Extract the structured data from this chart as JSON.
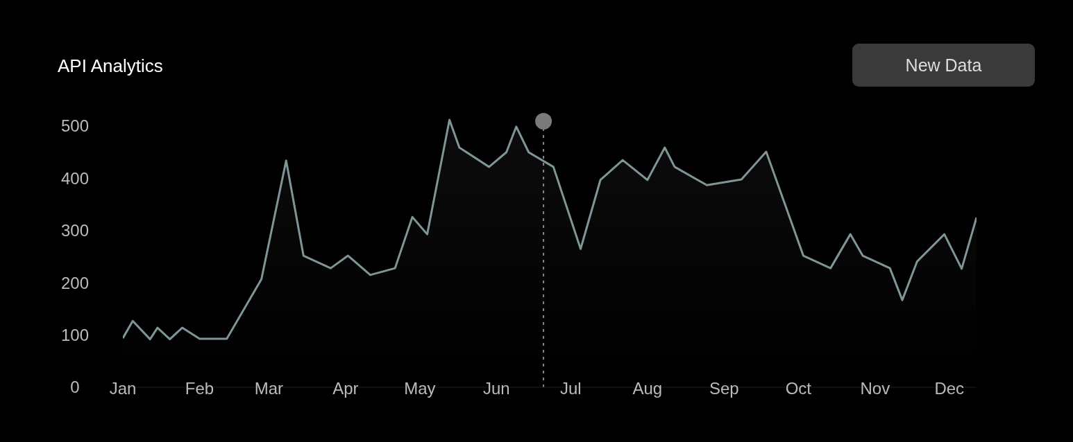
{
  "chart_data": {
    "type": "area",
    "title": "API Analytics",
    "annotations": [
      "New Data"
    ],
    "x": [
      "--01-01",
      "--01-05",
      "--01-12",
      "--01-15",
      "--01-20",
      "--01-25",
      "--02-01",
      "--02-12",
      "--02-26",
      "--03-08",
      "--03-15",
      "--03-26",
      "--04-02",
      "--04-11",
      "--04-21",
      "--04-28",
      "--05-04",
      "--05-13",
      "--05-17",
      "--05-29",
      "--06-05",
      "--06-09",
      "--06-14",
      "--06-24",
      "--07-05",
      "--07-13",
      "--07-22",
      "--08-01",
      "--08-08",
      "--08-12",
      "--08-25",
      "--09-08",
      "--09-18",
      "--10-03",
      "--10-14",
      "--10-22",
      "--10-27",
      "--11-07",
      "--11-12",
      "--11-18",
      "--11-29",
      "--12-06",
      "--12-12"
    ],
    "series": [
      {
        "color": "#7f9597",
        "values": [
          94,
          127,
          92,
          114,
          92,
          114,
          93,
          93,
          207,
          434,
          252,
          228,
          252,
          215,
          228,
          326,
          293,
          512,
          459,
          422,
          450,
          499,
          450,
          422,
          265,
          397,
          435,
          397,
          459,
          422,
          387,
          398,
          451,
          252,
          228,
          293,
          252,
          228,
          167,
          241,
          293,
          227,
          325
        ]
      }
    ],
    "xticks": [
      {
        "value": "--01-01",
        "label": "Jan"
      },
      {
        "value": "--02-01",
        "label": "Feb"
      },
      {
        "value": "--03-01",
        "label": "Mar"
      },
      {
        "value": "--04-01",
        "label": "Apr"
      },
      {
        "value": "--05-01",
        "label": "May"
      },
      {
        "value": "--06-01",
        "label": "Jun"
      },
      {
        "value": "--07-01",
        "label": "Jul"
      },
      {
        "value": "--08-01",
        "label": "Aug"
      },
      {
        "value": "--09-01",
        "label": "Sep"
      },
      {
        "value": "--10-01",
        "label": "Oct"
      },
      {
        "value": "--11-01",
        "label": "Nov"
      },
      {
        "value": "--12-01",
        "label": "Dec"
      }
    ],
    "xlim": [
      "--01-01",
      "--12-12"
    ],
    "ylim": [
      0,
      520
    ],
    "yticks": [
      0,
      100,
      200,
      300,
      400,
      500
    ],
    "ref_lines": [
      {
        "axis": "x",
        "value": "--06-20",
        "label": null,
        "color": "#8a8a8a",
        "line_style": "dashed"
      }
    ],
    "grid": false,
    "legend": false,
    "marker": "none",
    "line_style": "solid"
  }
}
